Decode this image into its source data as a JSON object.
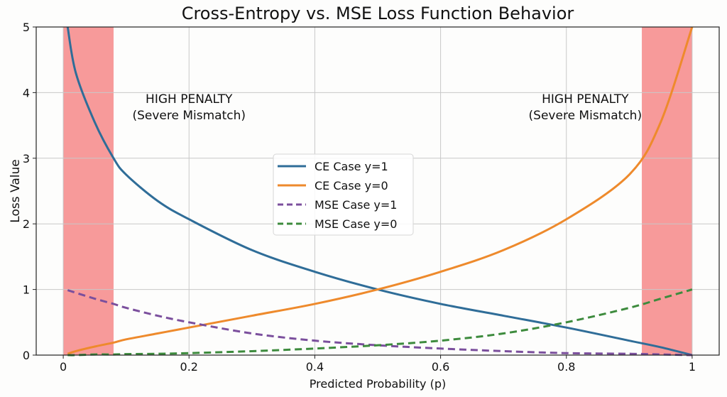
{
  "chart_data": {
    "type": "line",
    "title": "Cross-Entropy vs. MSE Loss Function Behavior",
    "xlabel": "Predicted Probability (p)",
    "ylabel": "Loss Value",
    "xlim": [
      -0.043,
      1.043
    ],
    "ylim": [
      0,
      5
    ],
    "xticks": [
      0,
      0.2,
      0.4,
      0.6,
      0.8,
      1
    ],
    "xtick_labels": [
      "0",
      "0.2",
      "0.4",
      "0.6",
      "0.8",
      "1"
    ],
    "yticks": [
      0,
      1,
      2,
      3,
      4,
      5
    ],
    "ytick_labels": [
      "0",
      "1",
      "2",
      "3",
      "4",
      "5"
    ],
    "grid": true,
    "legend_placement": "center",
    "shaded_regions": [
      {
        "x": [
          0,
          0.08
        ],
        "color": "#f79a9a"
      },
      {
        "x": [
          0.92,
          1
        ],
        "color": "#f79a9a"
      }
    ],
    "annotations": [
      {
        "line1": "HIGH PENALTY",
        "line2": "(Severe Mismatch)",
        "x": 0.2,
        "y": 3.8
      },
      {
        "line1": "HIGH PENALTY",
        "line2": "(Severe Mismatch)",
        "x": 0.83,
        "y": 3.8
      }
    ],
    "x": [
      0.007,
      0.02,
      0.05,
      0.08,
      0.1,
      0.15,
      0.2,
      0.3,
      0.4,
      0.5,
      0.6,
      0.7,
      0.8,
      0.9,
      0.95,
      1.0
    ],
    "series": [
      {
        "name": "CE Case y=1",
        "color": "#2f6d98",
        "style": "solid",
        "values": [
          5.0,
          4.3,
          3.55,
          3.0,
          2.75,
          2.35,
          2.07,
          1.6,
          1.27,
          1.0,
          0.78,
          0.6,
          0.42,
          0.22,
          0.12,
          0.0
        ]
      },
      {
        "name": "CE Case y=0",
        "color": "#ee8a2c",
        "style": "solid",
        "values": [
          0.02,
          0.06,
          0.13,
          0.19,
          0.24,
          0.33,
          0.42,
          0.6,
          0.78,
          1.0,
          1.27,
          1.6,
          2.07,
          2.75,
          3.55,
          5.0
        ]
      },
      {
        "name": "MSE Case y=1",
        "color": "#7b4f9d",
        "style": "dashed",
        "values": [
          0.99,
          0.95,
          0.86,
          0.78,
          0.72,
          0.6,
          0.5,
          0.33,
          0.22,
          0.15,
          0.1,
          0.06,
          0.03,
          0.02,
          0.01,
          0.0
        ]
      },
      {
        "name": "MSE Case y=0",
        "color": "#3d8b3d",
        "style": "dashed",
        "values": [
          0.0,
          0.0,
          0.01,
          0.01,
          0.015,
          0.02,
          0.03,
          0.06,
          0.1,
          0.15,
          0.22,
          0.33,
          0.5,
          0.72,
          0.86,
          1.0
        ]
      }
    ]
  }
}
